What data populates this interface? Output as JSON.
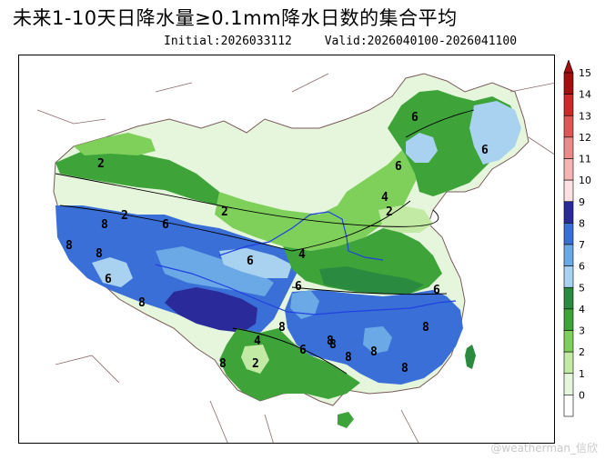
{
  "title": "未来1-10天日降水量≥0.1mm降水日数的集合平均",
  "initial": "Initial:2026033112",
  "valid": "Valid:2026040100-2026041100",
  "watermark": "@weatherman_信欣",
  "colors": {
    "level_0": "#ffffff",
    "level_1": "#e6f6dc",
    "level_2": "#c2eaa4",
    "level_3": "#7fd05a",
    "level_4": "#3ea43a",
    "level_5": "#2a8a40",
    "level_6": "#a9d1f0",
    "level_7": "#6aa8e6",
    "level_8": "#3a6fd8",
    "level_9": "#2a2a9a",
    "level_10": "#fbe1e1",
    "level_11": "#f6b5b5",
    "level_12": "#ec8a8a",
    "level_13": "#de5656",
    "level_14": "#c92a2a",
    "level_15": "#a10f0f",
    "lakes_rivers": "#2040e0",
    "borders": "#8a6a6a"
  },
  "colorbar": {
    "ticks": [
      "15",
      "14",
      "13",
      "12",
      "11",
      "10",
      "9",
      "8",
      "7",
      "6",
      "5",
      "4",
      "3",
      "2",
      "1",
      "0"
    ]
  },
  "contour_labels": {
    "l_xj_north": "2",
    "l_tibet_w": "8",
    "l_tibet_nw": "8",
    "l_tibet_c": "8",
    "l_tibet_c2": "6",
    "l_tibet_s": "8",
    "l_qinghai": "6",
    "l_qh_2": "2",
    "l_qh_2b": "2",
    "l_gansu": "6",
    "l_sichuan": "6",
    "l_shaanxi": "4",
    "l_huabei": "4",
    "l_huabei2": "2",
    "l_ne_a": "6",
    "l_ne_b": "6",
    "l_ne_c": "6",
    "l_ne_d": "6",
    "l_jiangnan": "6",
    "l_guizhou": "8",
    "l_yunnan": "4",
    "l_yunnan2": "2",
    "l_yunnan3": "8",
    "l_hunan": "6",
    "l_hubei": "8",
    "l_jiangxi": "8",
    "l_fujian": "8",
    "l_guangdong": "8",
    "l_guangxi": "8",
    "l_ydelta": "8"
  }
}
